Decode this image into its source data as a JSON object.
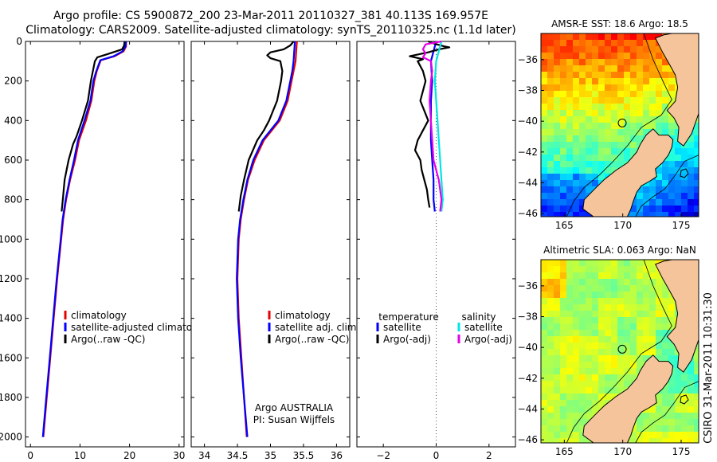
{
  "header": {
    "line1": "Argo profile: CS 5900872_200 23-Mar-2011 20110327_381 40.113S 169.957E",
    "line2": "Climatology: CARS2009. Satellite-adjusted climatology: synTS_20110325.nc (1.1d later)"
  },
  "side_label": "CSIRO 31-Mar-2011 10:31:30",
  "colors": {
    "climatology": "#e60000",
    "satellite_adjusted": "#0000ff",
    "argo": "#000000",
    "salinity_satellite": "#00e5e5",
    "salinity_argo": "#e600e6",
    "land": "#f5c49a"
  },
  "chart_data": [
    {
      "type": "line",
      "id": "temperature",
      "xlabel": "temperature",
      "xlim": [
        -1,
        31
      ],
      "ylim": [
        2050,
        0
      ],
      "xticks": [
        0,
        10,
        20,
        30
      ],
      "yticks": [
        0,
        200,
        400,
        600,
        800,
        1000,
        1200,
        1400,
        1600,
        1800,
        2000
      ],
      "legend": [
        "climatology",
        "satellite-adjusted climatolog",
        "Argo(..raw -QC)"
      ],
      "series": [
        {
          "name": "climatology",
          "color": "#e60000",
          "points": [
            [
              19.3,
              0
            ],
            [
              19.3,
              25
            ],
            [
              18.8,
              50
            ],
            [
              17,
              75
            ],
            [
              14.2,
              95
            ],
            [
              13.4,
              150
            ],
            [
              12.9,
              200
            ],
            [
              12.3,
              300
            ],
            [
              11.2,
              400
            ],
            [
              9.8,
              500
            ],
            [
              9,
              600
            ],
            [
              8,
              700
            ],
            [
              7.2,
              800
            ],
            [
              6.6,
              900
            ],
            [
              6.2,
              1000
            ],
            [
              5.4,
              1200
            ],
            [
              4.7,
              1400
            ],
            [
              4,
              1600
            ],
            [
              3.3,
              1800
            ],
            [
              2.6,
              2000
            ]
          ]
        },
        {
          "name": "satellite-adjusted climatolog",
          "color": "#0000ff",
          "points": [
            [
              19.3,
              0
            ],
            [
              19.2,
              25
            ],
            [
              18.6,
              50
            ],
            [
              16.8,
              75
            ],
            [
              14.1,
              95
            ],
            [
              13.3,
              150
            ],
            [
              12.7,
              200
            ],
            [
              12.1,
              300
            ],
            [
              10.9,
              400
            ],
            [
              9.6,
              500
            ],
            [
              8.8,
              600
            ],
            [
              7.9,
              700
            ],
            [
              7.1,
              800
            ],
            [
              6.5,
              900
            ],
            [
              6.1,
              1000
            ],
            [
              5.3,
              1200
            ],
            [
              4.6,
              1400
            ],
            [
              3.9,
              1600
            ],
            [
              3.2,
              1800
            ],
            [
              2.5,
              2000
            ]
          ]
        },
        {
          "name": "Argo(..raw -QC)",
          "color": "#000000",
          "points": [
            [
              19,
              0
            ],
            [
              18.9,
              20
            ],
            [
              18.5,
              40
            ],
            [
              15.5,
              65
            ],
            [
              13.5,
              80
            ],
            [
              13,
              100
            ],
            [
              12.6,
              150
            ],
            [
              12.2,
              200
            ],
            [
              11.6,
              300
            ],
            [
              10.4,
              400
            ],
            [
              9.3,
              480
            ],
            [
              8.6,
              520
            ],
            [
              7.7,
              600
            ],
            [
              7.3,
              650
            ],
            [
              6.9,
              700
            ],
            [
              6.6,
              780
            ],
            [
              6.3,
              860
            ]
          ]
        }
      ]
    },
    {
      "type": "line",
      "id": "salinity",
      "xlabel": "salinity",
      "xlim": [
        33.8,
        36.2
      ],
      "ylim": [
        2050,
        0
      ],
      "xticks": [
        34,
        34.5,
        35,
        35.5,
        36
      ],
      "xticklabels": [
        "34",
        "34.5",
        "35",
        "35.5",
        "36"
      ],
      "legend": [
        "climatology",
        "satellite adj. clim.",
        "Argo(..raw -QC)"
      ],
      "annotation": [
        "Argo AUSTRALIA",
        "PI: Susan Wijffels"
      ],
      "series": [
        {
          "name": "climatology",
          "color": "#e60000",
          "points": [
            [
              35.4,
              0
            ],
            [
              35.39,
              50
            ],
            [
              35.38,
              100
            ],
            [
              35.35,
              150
            ],
            [
              35.32,
              200
            ],
            [
              35.26,
              300
            ],
            [
              35.14,
              400
            ],
            [
              35.02,
              450
            ],
            [
              34.9,
              500
            ],
            [
              34.76,
              600
            ],
            [
              34.66,
              700
            ],
            [
              34.6,
              800
            ],
            [
              34.55,
              900
            ],
            [
              34.52,
              1000
            ],
            [
              34.5,
              1200
            ],
            [
              34.52,
              1400
            ],
            [
              34.56,
              1600
            ],
            [
              34.6,
              1800
            ],
            [
              34.64,
              2000
            ]
          ]
        },
        {
          "name": "satellite adj. clim.",
          "color": "#0000ff",
          "points": [
            [
              35.37,
              0
            ],
            [
              35.36,
              50
            ],
            [
              35.35,
              100
            ],
            [
              35.33,
              150
            ],
            [
              35.3,
              200
            ],
            [
              35.24,
              300
            ],
            [
              35.12,
              400
            ],
            [
              35.0,
              450
            ],
            [
              34.88,
              500
            ],
            [
              34.74,
              600
            ],
            [
              34.65,
              700
            ],
            [
              34.59,
              800
            ],
            [
              34.54,
              900
            ],
            [
              34.51,
              1000
            ],
            [
              34.49,
              1200
            ],
            [
              34.51,
              1400
            ],
            [
              34.55,
              1600
            ],
            [
              34.6,
              1800
            ],
            [
              34.65,
              2000
            ]
          ]
        },
        {
          "name": "Argo(..raw -QC)",
          "color": "#000000",
          "points": [
            [
              35.35,
              0
            ],
            [
              35.3,
              20
            ],
            [
              35.2,
              40
            ],
            [
              35.0,
              55
            ],
            [
              34.95,
              70
            ],
            [
              35.0,
              85
            ],
            [
              35.15,
              100
            ],
            [
              35.18,
              150
            ],
            [
              35.16,
              200
            ],
            [
              35.1,
              300
            ],
            [
              34.98,
              400
            ],
            [
              34.9,
              450
            ],
            [
              34.8,
              500
            ],
            [
              34.67,
              600
            ],
            [
              34.6,
              700
            ],
            [
              34.55,
              780
            ],
            [
              34.52,
              860
            ]
          ]
        }
      ]
    },
    {
      "type": "line",
      "id": "difference",
      "xlabel": "difference from climatology",
      "xlim": [
        -3,
        3
      ],
      "ylim": [
        2050,
        0
      ],
      "xticks": [
        -2,
        0,
        2
      ],
      "xticklabels": [
        "−2",
        "0",
        "2"
      ],
      "legend_headers": [
        "temperature",
        "salinity"
      ],
      "legend": [
        "satellite",
        "Argo(-adj)",
        "satellite",
        "Argo(-adj)"
      ],
      "series": [
        {
          "name": "temperature satellite",
          "color": "#0000ff",
          "points": [
            [
              0,
              0
            ],
            [
              -0.1,
              50
            ],
            [
              -0.2,
              100
            ],
            [
              -0.15,
              200
            ],
            [
              -0.2,
              300
            ],
            [
              -0.2,
              400
            ],
            [
              -0.2,
              500
            ],
            [
              -0.15,
              600
            ],
            [
              -0.1,
              700
            ],
            [
              -0.1,
              800
            ],
            [
              -0.05,
              860
            ]
          ]
        },
        {
          "name": "temperature Argo(-adj)",
          "color": "#000000",
          "points": [
            [
              -0.3,
              0
            ],
            [
              -0.1,
              10
            ],
            [
              0.3,
              25
            ],
            [
              0.5,
              30
            ],
            [
              0.1,
              40
            ],
            [
              -0.3,
              55
            ],
            [
              -1.0,
              75
            ],
            [
              -0.5,
              90
            ],
            [
              -0.7,
              100
            ],
            [
              -0.5,
              150
            ],
            [
              -0.4,
              200
            ],
            [
              -0.6,
              300
            ],
            [
              -0.3,
              400
            ],
            [
              -0.5,
              450
            ],
            [
              -0.7,
              500
            ],
            [
              -0.8,
              550
            ],
            [
              -0.6,
              600
            ],
            [
              -0.55,
              650
            ],
            [
              -0.45,
              700
            ],
            [
              -0.35,
              750
            ],
            [
              -0.3,
              800
            ],
            [
              -0.25,
              840
            ]
          ]
        },
        {
          "name": "salinity satellite",
          "color": "#00e5e5",
          "points": [
            [
              0.2,
              0
            ],
            [
              0.1,
              50
            ],
            [
              0,
              100
            ],
            [
              -0.05,
              200
            ],
            [
              0,
              300
            ],
            [
              0.05,
              400
            ],
            [
              0.1,
              500
            ],
            [
              0.15,
              600
            ],
            [
              0.2,
              700
            ],
            [
              0.25,
              800
            ],
            [
              0.2,
              860
            ]
          ]
        },
        {
          "name": "salinity Argo(-adj)",
          "color": "#e600e6",
          "points": [
            [
              0.2,
              0
            ],
            [
              -0.4,
              15
            ],
            [
              -0.5,
              40
            ],
            [
              -0.4,
              60
            ],
            [
              -0.5,
              80
            ],
            [
              -0.2,
              100
            ],
            [
              -0.15,
              150
            ],
            [
              -0.2,
              200
            ],
            [
              -0.25,
              300
            ],
            [
              -0.2,
              400
            ],
            [
              -0.15,
              500
            ],
            [
              -0.1,
              600
            ],
            [
              0.1,
              700
            ],
            [
              0.2,
              800
            ],
            [
              0.15,
              860
            ]
          ]
        }
      ]
    },
    {
      "type": "heatmap",
      "id": "sst_map",
      "title": "AMSR-E SST: 18.6 Argo: 18.5",
      "xlim": [
        163,
        176.5
      ],
      "ylim": [
        -46.2,
        -34.3
      ],
      "xticks": [
        165,
        170,
        175
      ],
      "yticks": [
        -36,
        -38,
        -40,
        -42,
        -44,
        -46
      ],
      "marker": {
        "lon": 169.957,
        "lat": -40.113
      },
      "palette": "jet"
    },
    {
      "type": "heatmap",
      "id": "sla_map",
      "title": "Altimetric SLA: 0.063 Argo: NaN",
      "xlim": [
        163,
        176.5
      ],
      "ylim": [
        -46.2,
        -34.3
      ],
      "xticks": [
        165,
        170,
        175
      ],
      "yticks": [
        -36,
        -38,
        -40,
        -42,
        -44,
        -46
      ],
      "marker": {
        "lon": 169.957,
        "lat": -40.113
      },
      "palette": "jet"
    }
  ]
}
